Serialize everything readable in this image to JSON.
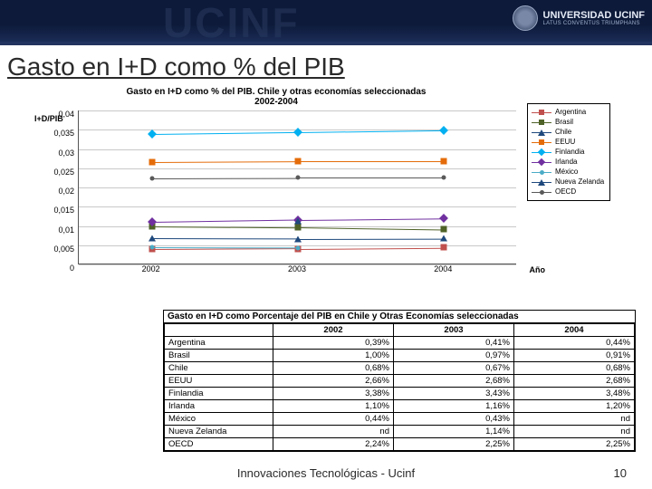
{
  "banner": {
    "watermark": "UCINF",
    "university_label": "UNIVERSIDAD UCINF",
    "university_sub": "LATUS CONVENTUS TRIUMPHANS"
  },
  "slide": {
    "title": "Gasto en I+D como % del PIB"
  },
  "chart": {
    "type": "line-with-markers",
    "title_line1": "Gasto en I+D como % del PIB. Chile y otras economías seleccionadas",
    "title_line2": "2002-2004",
    "y_label": "I+D/PIB",
    "x_label": "Año",
    "background_color": "#ffffff",
    "grid_color": "#c8c8c8",
    "axis_color": "#555555",
    "title_fontsize": 10,
    "label_fontsize": 9,
    "ylim": [
      0,
      0.04
    ],
    "y_ticks": [
      "0,04",
      "0,035",
      "0,03",
      "0,025",
      "0,02",
      "0,015",
      "0,01",
      "0,005",
      "0"
    ],
    "x_categories": [
      "2002",
      "2003",
      "2004"
    ],
    "series": [
      {
        "name": "Argentina",
        "color": "#c0504d",
        "marker": "square",
        "values": [
          0.0039,
          0.0041,
          0.0044
        ]
      },
      {
        "name": "Brasil",
        "color": "#4f6228",
        "marker": "square",
        "values": [
          0.01,
          0.0097,
          0.0091
        ]
      },
      {
        "name": "Chile",
        "color": "#1f497d",
        "marker": "triangle",
        "values": [
          0.0068,
          0.0067,
          0.0068
        ]
      },
      {
        "name": "EEUU",
        "color": "#e46c0a",
        "marker": "square",
        "values": [
          0.0266,
          0.0268,
          0.0268
        ]
      },
      {
        "name": "Finlandia",
        "color": "#00b0f0",
        "marker": "diamond",
        "values": [
          0.0338,
          0.0343,
          0.0348
        ]
      },
      {
        "name": "Irlanda",
        "color": "#7030a0",
        "marker": "diamond",
        "values": [
          0.011,
          0.0116,
          0.012
        ]
      },
      {
        "name": "México",
        "color": "#4bacc6",
        "marker": "none",
        "values": [
          0.0044,
          0.0043,
          null
        ]
      },
      {
        "name": "Nueva Zelanda",
        "color": "#1f497d",
        "marker": "triangle",
        "values": [
          null,
          0.0114,
          null
        ]
      },
      {
        "name": "OECD",
        "color": "#595959",
        "marker": "none",
        "values": [
          0.0224,
          0.0225,
          0.0225
        ]
      }
    ]
  },
  "table": {
    "title": "Gasto en I+D como Porcentaje del PIB en Chile y Otras Economías seleccionadas",
    "columns": [
      "",
      "2002",
      "2003",
      "2004"
    ],
    "rows": [
      [
        "Argentina",
        "0,39%",
        "0,41%",
        "0,44%"
      ],
      [
        "Brasil",
        "1,00%",
        "0,97%",
        "0,91%"
      ],
      [
        "Chile",
        "0,68%",
        "0,67%",
        "0,68%"
      ],
      [
        "EEUU",
        "2,66%",
        "2,68%",
        "2,68%"
      ],
      [
        "Finlandia",
        "3,38%",
        "3,43%",
        "3,48%"
      ],
      [
        "Irlanda",
        "1,10%",
        "1,16%",
        "1,20%"
      ],
      [
        "México",
        "0,44%",
        "0,43%",
        "nd"
      ],
      [
        "Nueva Zelanda",
        "nd",
        "1,14%",
        "nd"
      ],
      [
        "OECD",
        "2,24%",
        "2,25%",
        "2,25%"
      ]
    ]
  },
  "footer": {
    "text": "Innovaciones Tecnológicas - Ucinf",
    "page": "10"
  }
}
